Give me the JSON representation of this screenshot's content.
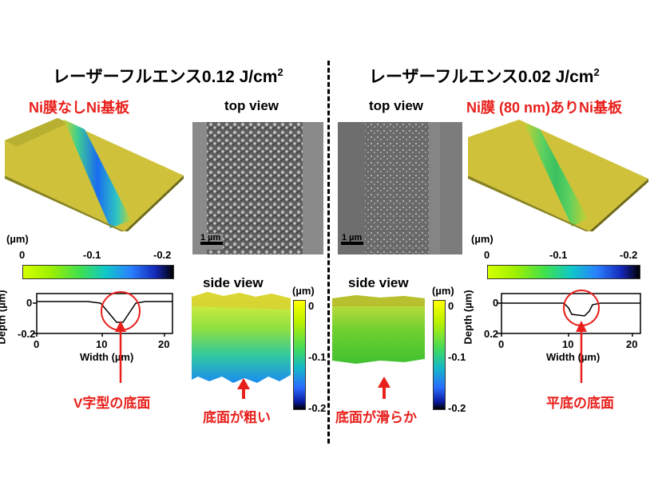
{
  "left": {
    "title_main": "レーザーフルエンス0.12 J/cm",
    "title_sup": "2",
    "sample_label": "Ni膜なしNi基板",
    "top_view": "top view",
    "side_view": "side view",
    "scale_bar": "1 µm",
    "colorbar_unit": "(µm)",
    "colorbar_ticks": [
      "0",
      "-0.1",
      "-0.2"
    ],
    "side_colorbar_unit": "(µm)",
    "side_colorbar_ticks": [
      "0",
      "-0.1",
      "-0.2"
    ],
    "profile": {
      "ylabel": "Depth (µm)",
      "xlabel": "Width (µm)",
      "yticks": [
        "0",
        "-0.2"
      ],
      "xticks": [
        "0",
        "10",
        "20"
      ]
    },
    "profile_annotation": "V字型の底面",
    "side_annotation": "底面が粗い"
  },
  "right": {
    "title_main": "レーザーフルエンス0.02 J/cm",
    "title_sup": "2",
    "sample_label": "Ni膜 (80 nm)ありNi基板",
    "top_view": "top view",
    "side_view": "side view",
    "scale_bar": "1 µm",
    "colorbar_unit": "(µm)",
    "colorbar_ticks": [
      "0",
      "-0.1",
      "-0.2"
    ],
    "side_colorbar_unit": "(µm)",
    "side_colorbar_ticks": [
      "0",
      "-0.1",
      "-0.2"
    ],
    "profile": {
      "ylabel": "Depth (µm)",
      "xlabel": "Width (µm)",
      "yticks": [
        "0",
        "0.2"
      ],
      "xticks": [
        "0",
        "10",
        "20"
      ]
    },
    "profile_annotation": "平底の底面",
    "side_annotation": "底面が滑らか"
  },
  "colors": {
    "annotation": "#e8201c",
    "surface_yellow": "#d8c832",
    "groove_blue": "#2a7fff"
  }
}
